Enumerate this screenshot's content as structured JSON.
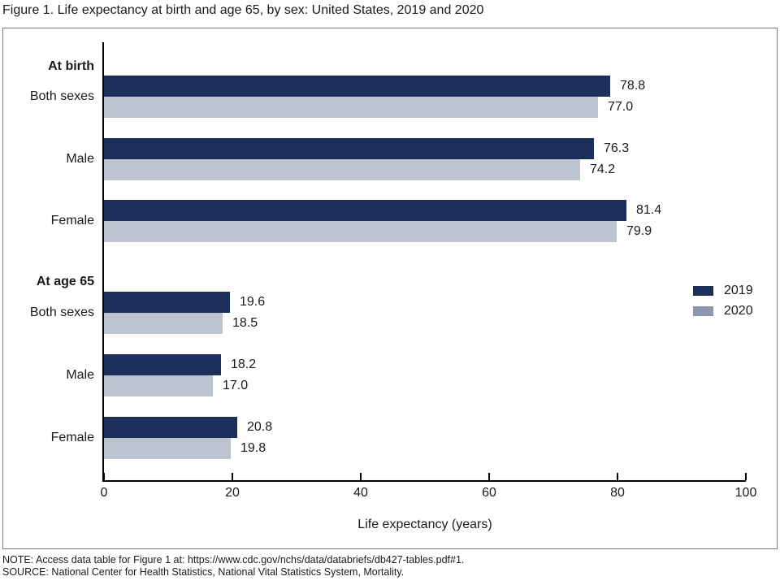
{
  "title": "Figure 1. Life expectancy at birth and age 65, by sex: United States, 2019 and 2020",
  "chart_data": {
    "type": "bar",
    "orientation": "horizontal",
    "title": "Figure 1. Life expectancy at birth and age 65, by sex: United States, 2019 and 2020",
    "sections": [
      {
        "header": "At birth",
        "categories": [
          "Both sexes",
          "Male",
          "Female"
        ],
        "series": [
          {
            "name": "2019",
            "values": [
              78.8,
              76.3,
              81.4
            ]
          },
          {
            "name": "2020",
            "values": [
              77.0,
              74.2,
              79.9
            ]
          }
        ]
      },
      {
        "header": "At age 65",
        "categories": [
          "Both sexes",
          "Male",
          "Female"
        ],
        "series": [
          {
            "name": "2019",
            "values": [
              19.6,
              18.2,
              20.8
            ]
          },
          {
            "name": "2020",
            "values": [
              18.5,
              17.0,
              19.8
            ]
          }
        ]
      }
    ],
    "series_colors": {
      "2019": "#1c2f5a",
      "2020": "#bdc3cf"
    },
    "xlabel": "Life expectancy (years)",
    "xlim": [
      0,
      100
    ],
    "xticks": [
      0,
      20,
      40,
      60,
      80,
      100
    ],
    "grid": false,
    "value_labels": true,
    "legend": {
      "position": "right-middle",
      "entries": [
        {
          "label": "2019",
          "color": "#1c2f5a"
        },
        {
          "label": "2020",
          "color": "#8d98ae"
        }
      ]
    }
  },
  "footer": {
    "note": "NOTE: Access data table for Figure 1 at: https://www.cdc.gov/nchs/data/databriefs/db427-tables.pdf#1.",
    "source": "SOURCE: National Center for Health Statistics, National Vital Statistics System, Mortality."
  }
}
